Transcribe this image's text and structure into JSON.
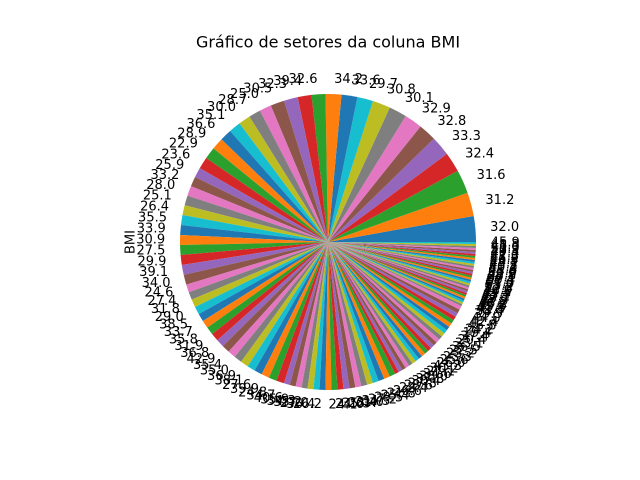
{
  "chart_data": {
    "type": "pie",
    "title": "Gráfico de setores da coluna BMI",
    "ylabel": "BMI",
    "categories": [
      "32.0",
      "31.2",
      "31.6",
      "32.4",
      "33.3",
      "32.8",
      "32.9",
      "30.1",
      "30.8",
      "29.7",
      "33.6",
      "34.2",
      "32.6",
      "39.4",
      "32.3",
      "30.5",
      "25.0",
      "28.7",
      "30.0",
      "35.1",
      "36.6",
      "28.9",
      "22.9",
      "23.6",
      "25.9",
      "33.2",
      "28.0",
      "25.1",
      "26.4",
      "35.5",
      "33.9",
      "30.9",
      "27.5",
      "29.9",
      "39.1",
      "34.0",
      "24.6",
      "27.4",
      "31.8",
      "29.0",
      "38.5",
      "33.7",
      "35.8",
      "31.9",
      "36.8",
      "42.9",
      "35.4",
      "35.0",
      "36.9",
      "38.1",
      "27.6",
      "39.9",
      "24.8",
      "34.7",
      "40.6",
      "35.9",
      "34.3",
      "35.2",
      "27.0",
      "36.4",
      "26.2",
      "24.1",
      "24.0",
      "35.3",
      "28.4",
      "31.0",
      "34.5",
      "37.2",
      "29.5",
      "25.4",
      "21.8",
      "26.6",
      "22.4",
      "28.6",
      "27.8",
      "30.4",
      "37.8",
      "38.0",
      "34.6",
      "27.1",
      "30.2",
      "43.3",
      "26.0",
      "25.6",
      "23.3",
      "23.2",
      "22.5",
      "36.5",
      "33.1",
      "20.4",
      "37.4",
      "19.4",
      "24.2",
      "46.8",
      "42.4",
      "44.0",
      "39.5",
      "38.4",
      "41.5",
      "45.3",
      "45.8",
      "46.2",
      "47.9",
      "49.7",
      "42.1",
      "43.4",
      "44.5",
      "40.9",
      "52.3",
      "53.2",
      "55.0",
      "57.3",
      "59.4",
      "67.1",
      "48.8",
      "50.0",
      "45.6",
      "41.3",
      "40.2",
      "43.1",
      "44.2",
      "46.5",
      "45.2",
      "42.3",
      "47.4",
      "49.3",
      "52.9",
      "41.0",
      "48.3",
      "45.9"
    ],
    "values": [
      13,
      12,
      12,
      10,
      10,
      9,
      9,
      9,
      9,
      8,
      8,
      8,
      7,
      7,
      7,
      7,
      6,
      6,
      6,
      6,
      6,
      6,
      6,
      6,
      5,
      5,
      5,
      5,
      5,
      5,
      5,
      5,
      5,
      5,
      5,
      5,
      4,
      4,
      4,
      4,
      4,
      4,
      4,
      4,
      4,
      4,
      4,
      4,
      4,
      4,
      4,
      4,
      4,
      4,
      3,
      3,
      3,
      3,
      3,
      3,
      3,
      3,
      3,
      3,
      3,
      3,
      3,
      3,
      3,
      3,
      3,
      3,
      3,
      2,
      2,
      2,
      2,
      2,
      2,
      2,
      2,
      2,
      2,
      2,
      2,
      2,
      2,
      2,
      2,
      2,
      2,
      2,
      2,
      2,
      2,
      2,
      2,
      1,
      1,
      1,
      1,
      1,
      1,
      1,
      1,
      1,
      1,
      1,
      1,
      1,
      1,
      1,
      1,
      1,
      1,
      1,
      1,
      1,
      1,
      1,
      1,
      1,
      1,
      1,
      1,
      1,
      1,
      1,
      1,
      1
    ],
    "colors": [
      "#1f77b4",
      "#ff7f0e",
      "#2ca02c",
      "#d62728",
      "#9467bd",
      "#8c564b",
      "#e377c2",
      "#7f7f7f",
      "#bcbd22",
      "#17becf"
    ]
  }
}
